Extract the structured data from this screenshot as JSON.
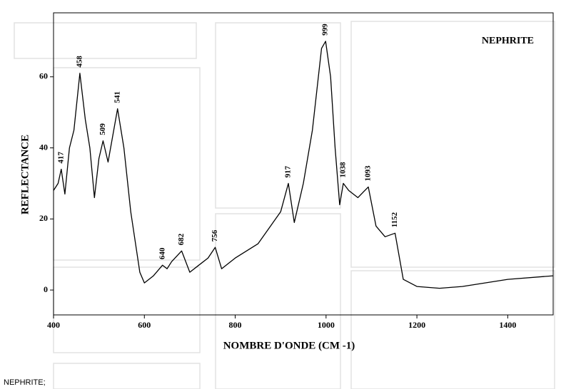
{
  "chart_data": {
    "type": "line",
    "title": "NEPHRITE",
    "xlabel": "NOMBRE D'ONDE (CM -1)",
    "ylabel": "REFLECTANCE",
    "caption": "NEPHRITE;",
    "color": "#000000",
    "x": [
      400,
      410,
      417,
      425,
      435,
      445,
      458,
      470,
      480,
      490,
      500,
      509,
      520,
      541,
      555,
      570,
      590,
      600,
      620,
      640,
      650,
      660,
      682,
      700,
      720,
      740,
      756,
      770,
      800,
      850,
      900,
      917,
      930,
      950,
      970,
      990,
      999,
      1010,
      1020,
      1030,
      1038,
      1050,
      1070,
      1093,
      1110,
      1130,
      1152,
      1170,
      1200,
      1250,
      1300,
      1400,
      1500
    ],
    "values": [
      28,
      30,
      34,
      27,
      40,
      45,
      61,
      48,
      40,
      26,
      37,
      42,
      36,
      51,
      40,
      22,
      5,
      2,
      4,
      7,
      6,
      8,
      11,
      5,
      7,
      9,
      12,
      6,
      9,
      13,
      22,
      30,
      19,
      30,
      45,
      68,
      70,
      60,
      40,
      24,
      30,
      28,
      26,
      29,
      18,
      15,
      16,
      3,
      1,
      0.5,
      1,
      3,
      4
    ],
    "annotations": [
      {
        "x": 417,
        "y": 34,
        "text": "417"
      },
      {
        "x": 458,
        "y": 61,
        "text": "458"
      },
      {
        "x": 509,
        "y": 42,
        "text": "509"
      },
      {
        "x": 541,
        "y": 51,
        "text": "541"
      },
      {
        "x": 640,
        "y": 7,
        "text": "640"
      },
      {
        "x": 682,
        "y": 11,
        "text": "682"
      },
      {
        "x": 756,
        "y": 12,
        "text": "756"
      },
      {
        "x": 917,
        "y": 30,
        "text": "917"
      },
      {
        "x": 999,
        "y": 70,
        "text": "999"
      },
      {
        "x": 1038,
        "y": 30,
        "text": "1038"
      },
      {
        "x": 1093,
        "y": 29,
        "text": "1093"
      },
      {
        "x": 1152,
        "y": 16,
        "text": "1152"
      }
    ],
    "xlim": [
      400,
      1500
    ],
    "ylim": [
      -7,
      78
    ],
    "xticks": [
      400,
      600,
      800,
      1000,
      1200,
      1400
    ],
    "yticks": [
      0,
      20,
      40,
      60
    ]
  }
}
